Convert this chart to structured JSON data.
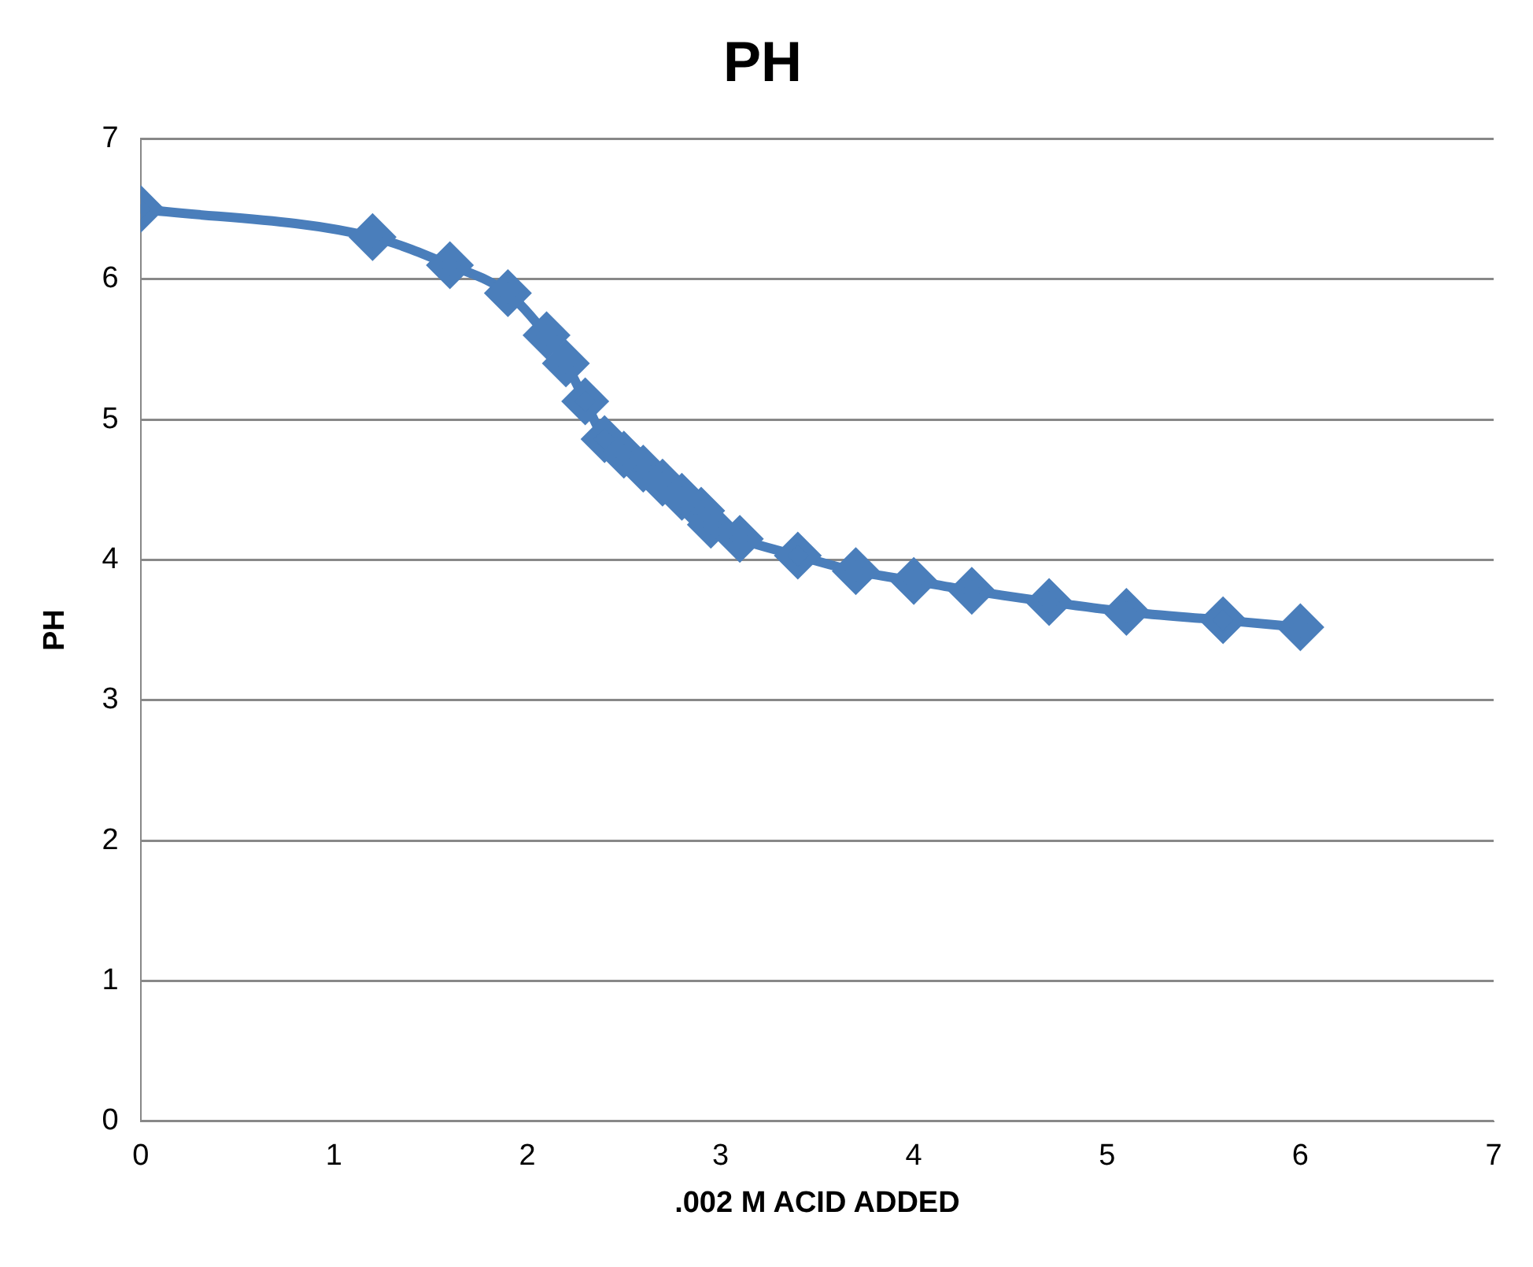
{
  "chart_data": {
    "type": "line",
    "title": "PH",
    "xlabel": ".002 M ACID ADDED",
    "ylabel": "PH",
    "x": [
      0,
      1.2,
      1.6,
      1.9,
      2.1,
      2.2,
      2.3,
      2.4,
      2.5,
      2.6,
      2.7,
      2.8,
      2.9,
      2.95,
      3.1,
      3.4,
      3.7,
      4.0,
      4.3,
      4.7,
      5.1,
      5.6,
      6.0
    ],
    "series": [
      {
        "color": "#4a7ebb",
        "values": [
          6.5,
          6.3,
          6.1,
          5.9,
          5.6,
          5.4,
          5.13,
          4.86,
          4.75,
          4.65,
          4.55,
          4.45,
          4.35,
          4.25,
          4.15,
          4.03,
          3.92,
          3.85,
          3.78,
          3.7,
          3.63,
          3.57,
          3.52
        ]
      }
    ],
    "xlim": [
      0,
      7
    ],
    "xticks": [
      0,
      1,
      2,
      3,
      4,
      5,
      6,
      7
    ],
    "ylim": [
      0,
      7
    ],
    "yticks": [
      0,
      1,
      2,
      3,
      4,
      5,
      6,
      7
    ],
    "grid": "y",
    "legend": false,
    "marker": "diamond",
    "line_style": "solid"
  }
}
